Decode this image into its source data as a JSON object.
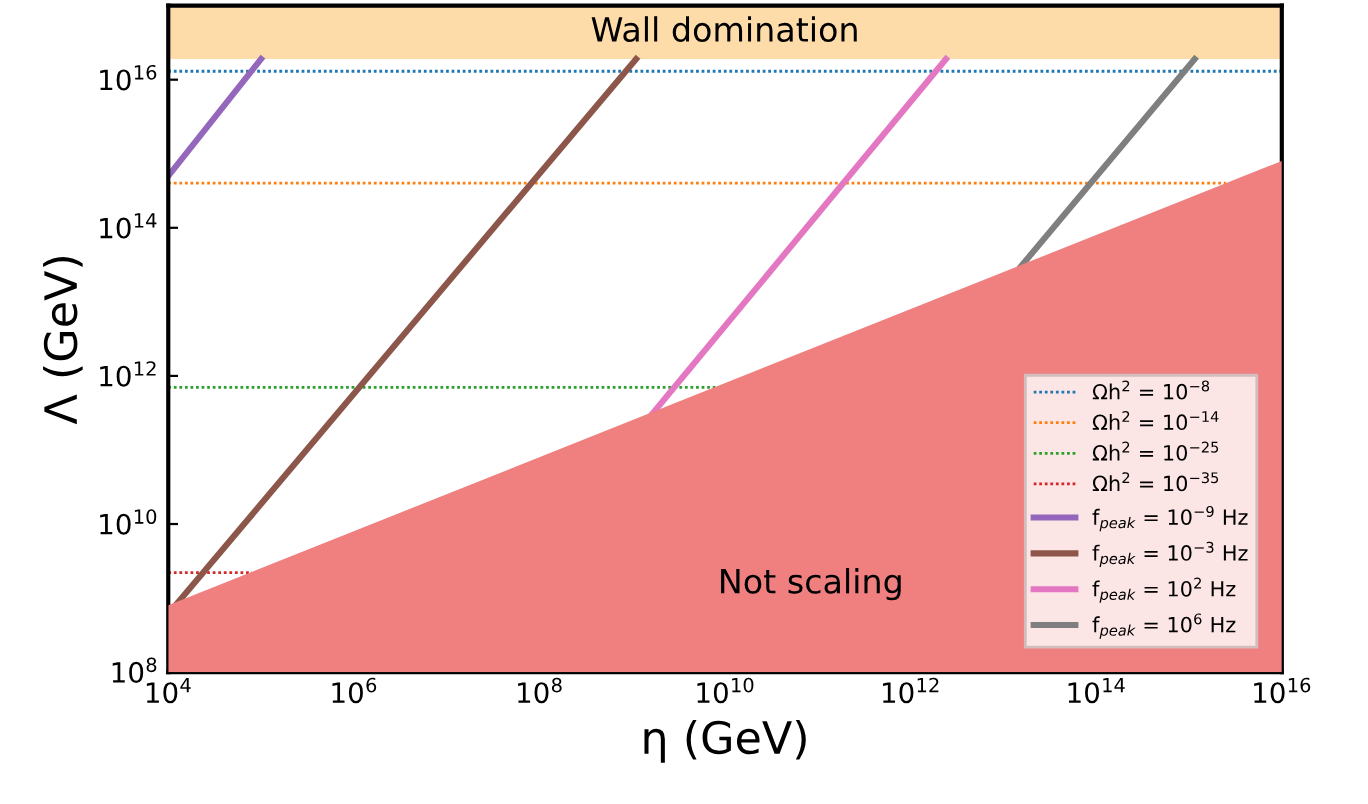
{
  "chart_data": {
    "type": "line",
    "xlabel": "η (GeV)",
    "ylabel": "Λ (GeV)",
    "log": "xy",
    "xlim": [
      10000.0,
      1e+16
    ],
    "ylim": [
      100000000.0,
      1e+17
    ],
    "xticks": [
      {
        "value": 10000.0,
        "label": "10$^{4}$"
      },
      {
        "value": 1000000.0,
        "label": "10$^{6}$"
      },
      {
        "value": 100000000.0,
        "label": "10$^{8}$"
      },
      {
        "value": 10000000000.0,
        "label": "10$^{10}$"
      },
      {
        "value": 1000000000000.0,
        "label": "10$^{12}$"
      },
      {
        "value": 100000000000000.0,
        "label": "10$^{14}$"
      },
      {
        "value": 1e+16,
        "label": "10$^{16}$"
      }
    ],
    "yticks": [
      {
        "value": 100000000.0,
        "label": "10$^{8}$"
      },
      {
        "value": 10000000000.0,
        "label": "10$^{10}$"
      },
      {
        "value": 1000000000000.0,
        "label": "10$^{12}$"
      },
      {
        "value": 100000000000000.0,
        "label": "10$^{14}$"
      },
      {
        "value": 1e+16,
        "label": "10$^{16}$"
      }
    ],
    "grid": false,
    "legend": "bottom right",
    "bands": [
      {
        "axis": "y",
        "from": 1.9e+16,
        "to": 1e+17,
        "label": "Wall domination",
        "color": "#fddcaa"
      }
    ],
    "annotations": [
      "Not scaling"
    ],
    "series": [
      {
        "name": "Ωh$^{2}$ = 10$^{−8}$",
        "color": "#1f77b4",
        "line_style": "dotted",
        "x": [
          10000.0,
          1e+16
        ],
        "values": [
          1.3e+16,
          1.3e+16
        ]
      },
      {
        "name": "Ωh$^{2}$ = 10$^{−14}$",
        "color": "#ff7f0e",
        "line_style": "dotted",
        "x": [
          10000.0,
          2500000000000000.0
        ],
        "values": [
          400000000000000.0,
          400000000000000.0
        ]
      },
      {
        "name": "Ωh$^{2}$ = 10$^{−25}$",
        "color": "#2ca02c",
        "line_style": "dotted",
        "x": [
          10000.0,
          9000000000.0
        ],
        "values": [
          700000000000.0,
          700000000000.0
        ]
      },
      {
        "name": "Ωh$^{2}$ = 10$^{−35}$",
        "color": "#d62728",
        "line_style": "dotted",
        "x": [
          10000.0,
          80000.0
        ],
        "values": [
          2200000000.0,
          2200000000.0
        ]
      },
      {
        "name": "f$_{peak}$ = 10$^{−9}$ Hz",
        "color": "#9467bd",
        "line_style": "solid",
        "x": [
          10000.0,
          100000.0
        ],
        "values": [
          500000000000000.0,
          1.9e+16
        ]
      },
      {
        "name": "f$_{peak}$ = 10$^{−3}$ Hz",
        "color": "#8c564b",
        "line_style": "solid",
        "x": [
          12000.0,
          1100000000.0
        ],
        "values": [
          800000000.0,
          1.9e+16
        ]
      },
      {
        "name": "f$_{peak}$ = 10$^{2}$ Hz",
        "color": "#e377c2",
        "line_style": "solid",
        "x": [
          1400000000.0,
          2400000000000.0
        ],
        "values": [
          240000000000.0,
          1.9e+16
        ]
      },
      {
        "name": "f$_{peak}$ = 10$^{6}$ Hz",
        "color": "#7f7f7f",
        "line_style": "solid",
        "x": [
          14000000000000.0,
          1150000000000000.0
        ],
        "values": [
          26000000000000.0,
          1.9e+16
        ]
      },
      {
        "type": "area",
        "color": "#f08080",
        "x": [
          10000.0,
          1e+16
        ],
        "values": [
          800000000.0,
          800000000000000.0
        ]
      }
    ]
  }
}
